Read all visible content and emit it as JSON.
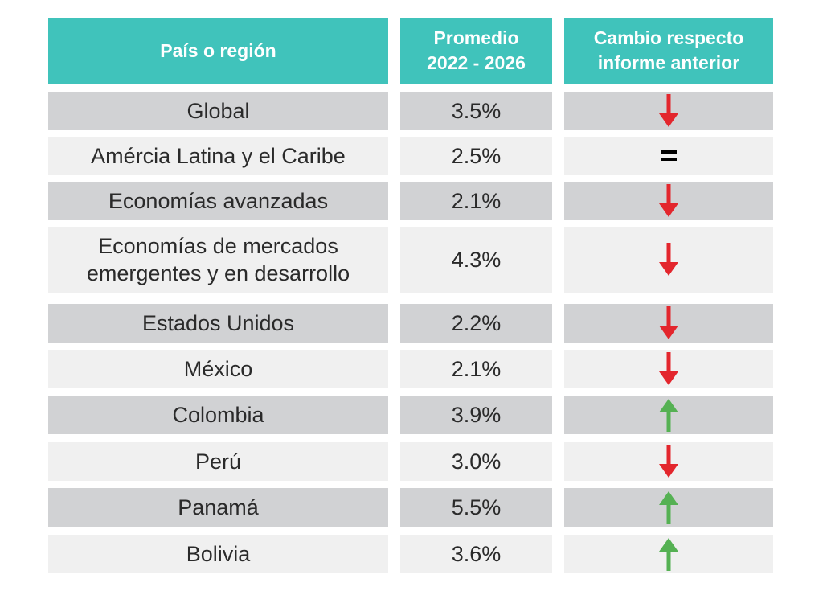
{
  "table": {
    "headers": {
      "region": "País o región",
      "average": "Promedio\n2022 - 2026",
      "change": "Cambio respecto\ninforme anterior"
    },
    "rows": [
      {
        "region": "Global",
        "value": "3.5%",
        "change": "down"
      },
      {
        "region": "Amércia Latina y el Caribe",
        "value": "2.5%",
        "change": "equal"
      },
      {
        "region": "Economías avanzadas",
        "value": "2.1%",
        "change": "down"
      },
      {
        "region": "Economías de mercados\nemergentes y en desarrollo",
        "value": "4.3%",
        "change": "down"
      },
      {
        "region": "Estados Unidos",
        "value": "2.2%",
        "change": "down"
      },
      {
        "region": "México",
        "value": "2.1%",
        "change": "down"
      },
      {
        "region": "Colombia",
        "value": "3.9%",
        "change": "up"
      },
      {
        "region": "Perú",
        "value": "3.0%",
        "change": "down"
      },
      {
        "region": "Panamá",
        "value": "5.5%",
        "change": "up"
      },
      {
        "region": "Bolivia",
        "value": "3.6%",
        "change": "up"
      }
    ]
  },
  "icons": {
    "down": "arrow-down-icon",
    "up": "arrow-up-icon",
    "equal": "equal-icon"
  },
  "colors": {
    "header": "#40c3bb",
    "row_dark": "#d1d2d4",
    "row_light": "#f0f0f0",
    "arrow_down": "#e3262d",
    "arrow_up": "#55b153",
    "equal": "#000000"
  }
}
